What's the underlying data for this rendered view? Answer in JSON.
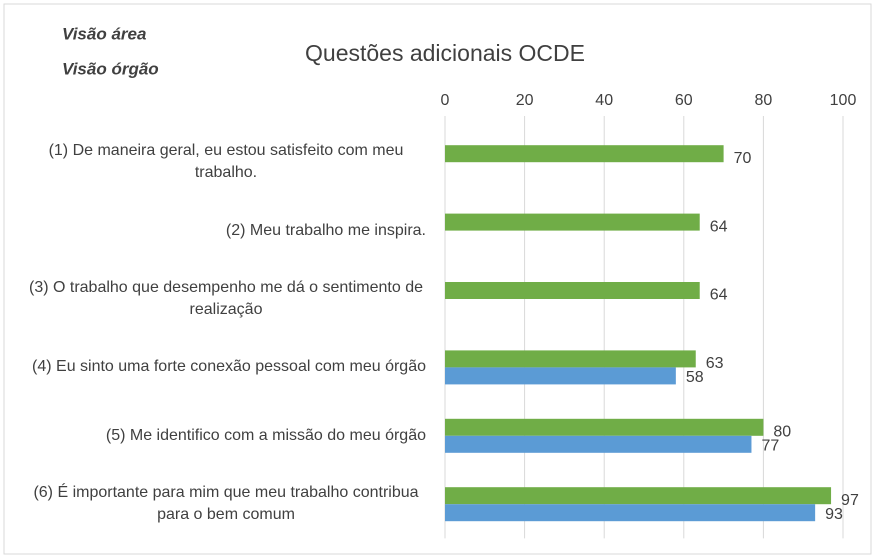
{
  "chart_data": {
    "type": "bar",
    "orientation": "horizontal",
    "title": "Questões adicionais OCDE",
    "categories": [
      "(1) De maneira geral, eu estou satisfeito com meu trabalho.",
      "(2) Meu trabalho me inspira.",
      "(3) O trabalho que desempenho me dá o sentimento de realização",
      "(4) Eu sinto uma forte conexão pessoal com meu órgão",
      "(5) Me identifico com a missão do meu órgão",
      "(6) É importante para mim que meu trabalho contribua para o bem comum"
    ],
    "series": [
      {
        "name": "Visão área",
        "color": "#70ad47",
        "values": [
          70,
          64,
          64,
          63,
          80,
          97
        ]
      },
      {
        "name": "Visão órgão",
        "color": "#5b9bd5",
        "values": [
          null,
          null,
          null,
          58,
          77,
          93
        ]
      }
    ],
    "xlim": [
      0,
      100
    ],
    "xticks": [
      0,
      20,
      40,
      60,
      80,
      100
    ],
    "grid": true
  }
}
